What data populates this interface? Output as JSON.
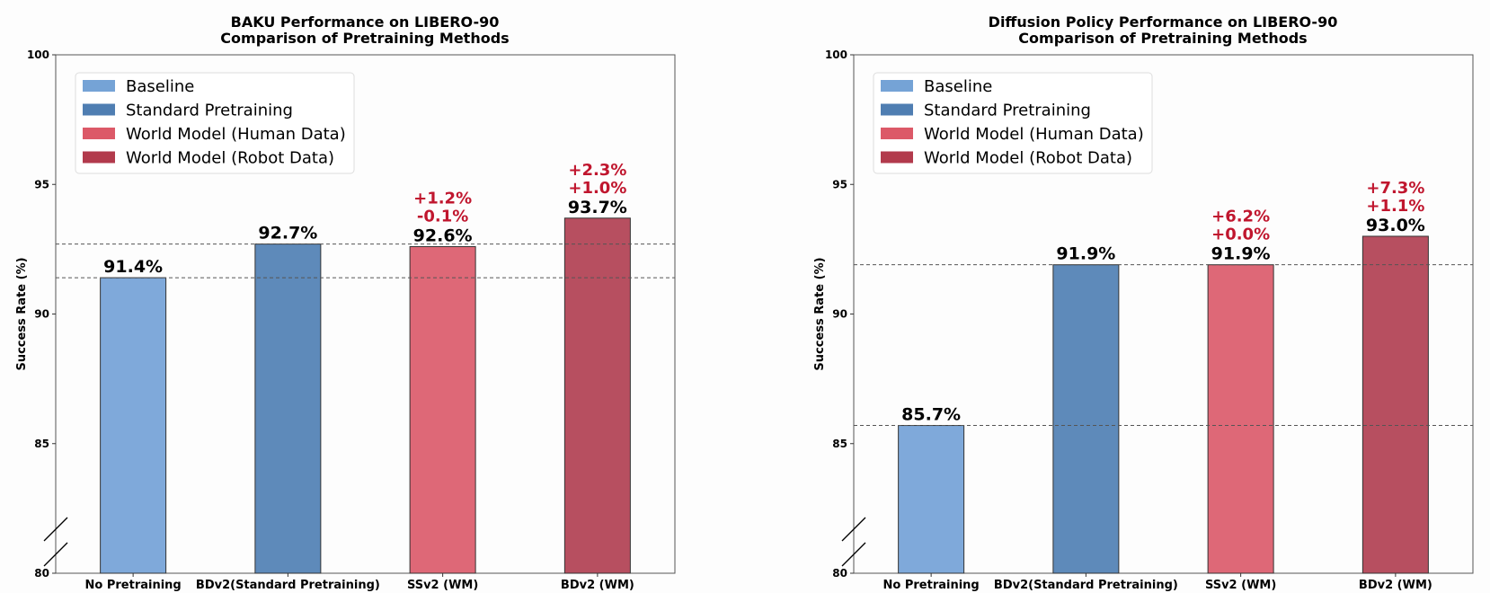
{
  "chart_data": [
    {
      "type": "bar",
      "title": "BAKU Performance on LIBERO-90\nComparison of Pretraining Methods",
      "xlabel": "",
      "ylabel": "Success Rate (%)",
      "ylim": [
        80,
        100
      ],
      "yticks": [
        80,
        85,
        90,
        95,
        100
      ],
      "axis_break": true,
      "grid": false,
      "legend_position": "top-left",
      "categories": [
        "No Pretraining",
        "BDv2(Standard Pretraining)",
        "SSv2 (WM)",
        "BDv2 (WM)"
      ],
      "values": [
        91.4,
        92.7,
        92.6,
        93.7
      ],
      "value_labels": [
        "91.4%",
        "92.7%",
        "92.6%",
        "93.7%"
      ],
      "bar_colors": [
        "#7fa9da",
        "#5e8aba",
        "#de6877",
        "#b74f60"
      ],
      "delta_labels": [
        [],
        [],
        [
          "+1.2%",
          "-0.1%"
        ],
        [
          "+2.3%",
          "+1.0%"
        ]
      ],
      "reference_lines": [
        91.4,
        92.7
      ]
    },
    {
      "type": "bar",
      "title": "Diffusion Policy Performance on LIBERO-90\nComparison of Pretraining Methods",
      "xlabel": "",
      "ylabel": "Success Rate (%)",
      "ylim": [
        80,
        100
      ],
      "yticks": [
        80,
        85,
        90,
        95,
        100
      ],
      "axis_break": true,
      "grid": false,
      "legend_position": "top-left",
      "categories": [
        "No Pretraining",
        "BDv2(Standard Pretraining)",
        "SSv2 (WM)",
        "BDv2 (WM)"
      ],
      "values": [
        85.7,
        91.9,
        91.9,
        93.0
      ],
      "value_labels": [
        "85.7%",
        "91.9%",
        "91.9%",
        "93.0%"
      ],
      "bar_colors": [
        "#7fa9da",
        "#5e8aba",
        "#de6877",
        "#b74f60"
      ],
      "delta_labels": [
        [],
        [],
        [
          "+6.2%",
          "+0.0%"
        ],
        [
          "+7.3%",
          "+1.1%"
        ]
      ],
      "reference_lines": [
        85.7,
        91.9
      ]
    }
  ],
  "legend": [
    {
      "label": "Baseline",
      "color": "#75a3d6"
    },
    {
      "label": "Standard Pretraining",
      "color": "#4f7eb2"
    },
    {
      "label": "World Model (Human Data)",
      "color": "#dc5968"
    },
    {
      "label": "World Model (Robot Data)",
      "color": "#b23a4c"
    }
  ],
  "colors": {
    "delta_text": "#c0162e",
    "reference_line": "#555555",
    "axis": "#333333"
  }
}
